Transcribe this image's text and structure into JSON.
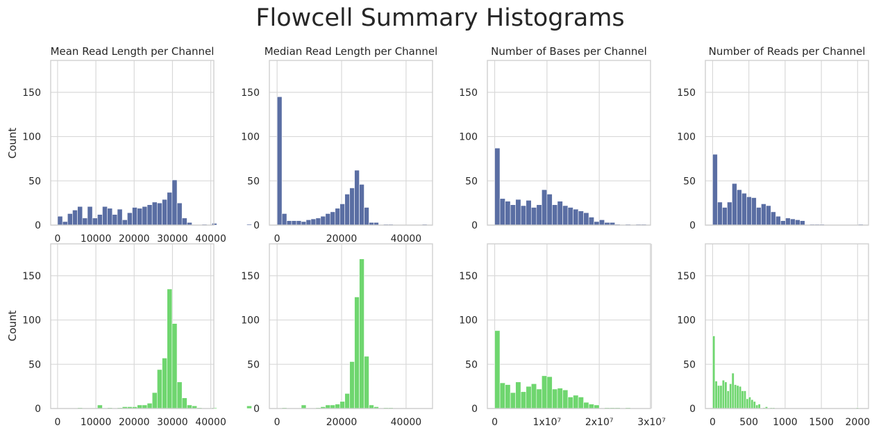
{
  "figure": {
    "title": "Flowcell Summary Histograms",
    "row_ylabels": [
      "Count",
      "Count"
    ],
    "row_colors": [
      "#5a6ea3",
      "#6fd66f"
    ]
  },
  "chart_data": [
    {
      "type": "bar",
      "row": 0,
      "col": 0,
      "title": "Mean Read Length per Channel",
      "xlabel": "",
      "ylabel": "Count",
      "xlim": [
        -1800,
        40800
      ],
      "ylim": [
        0,
        186
      ],
      "grid": true,
      "bin_start": 0,
      "bin_width": 1300,
      "values": [
        10,
        4,
        13,
        17,
        21,
        8,
        21,
        8,
        12,
        21,
        19,
        12,
        18,
        6,
        14,
        20,
        19,
        21,
        23,
        26,
        25,
        29,
        37,
        51,
        25,
        8,
        3,
        0,
        0,
        1,
        0,
        2,
        0,
        0,
        0,
        0,
        0,
        0,
        1,
        0
      ],
      "xticks": [
        0,
        10000,
        20000,
        30000,
        40000
      ],
      "xtick_labels": [
        "0",
        "10000",
        "20000",
        "30000",
        "40000"
      ],
      "yticks": [
        0,
        50,
        100,
        150
      ],
      "ytick_labels": [
        "0",
        "50",
        "100",
        "150"
      ]
    },
    {
      "type": "bar",
      "row": 0,
      "col": 1,
      "title": "Median Read Length per Channel",
      "xlabel": "",
      "ylabel": "",
      "xlim": [
        -2400,
        48200
      ],
      "ylim": [
        0,
        186
      ],
      "grid": true,
      "bin_start": 0,
      "bin_width": 1500,
      "values": [
        145,
        13,
        5,
        5,
        5,
        4,
        6,
        7,
        8,
        10,
        13,
        15,
        19,
        24,
        35,
        42,
        62,
        46,
        20,
        3,
        3,
        0,
        1,
        1,
        0,
        0,
        0,
        0,
        0,
        0,
        1,
        0
      ],
      "xticks": [
        0,
        20000,
        40000
      ],
      "xtick_labels": [
        "0",
        "20000",
        "40000"
      ],
      "yticks": [
        0,
        50,
        100,
        150
      ],
      "ytick_labels": [
        "0",
        "50",
        "100",
        "150"
      ]
    },
    {
      "type": "bar",
      "row": 0,
      "col": 2,
      "title": "Number of Bases per Channel",
      "xlabel": "",
      "ylabel": "",
      "xlim": [
        -1400000,
        29800000
      ],
      "ylim": [
        0,
        186
      ],
      "grid": true,
      "bin_start": 0,
      "bin_width": 1000000,
      "values": [
        87,
        30,
        27,
        23,
        29,
        22,
        28,
        20,
        23,
        40,
        35,
        23,
        27,
        22,
        20,
        18,
        16,
        14,
        9,
        4,
        6,
        3,
        3,
        1,
        0,
        1,
        0,
        1,
        1,
        0
      ],
      "xticks": [
        0,
        10000000,
        20000000
      ],
      "xtick_labels": [
        "",
        "",
        ""
      ],
      "yticks": [
        0,
        50,
        100,
        150
      ],
      "ytick_labels": [
        "0",
        "50",
        "100",
        "150"
      ]
    },
    {
      "type": "bar",
      "row": 0,
      "col": 3,
      "title": "Number of Reads per Channel",
      "xlabel": "",
      "ylabel": "",
      "xlim": [
        -100,
        2150
      ],
      "ylim": [
        0,
        186
      ],
      "grid": true,
      "bin_start": 0,
      "bin_width": 67,
      "values": [
        80,
        26,
        20,
        26,
        47,
        40,
        36,
        32,
        31,
        20,
        24,
        22,
        15,
        10,
        5,
        8,
        7,
        6,
        5,
        0,
        1,
        1,
        1,
        0,
        0,
        0,
        0,
        0,
        0,
        0,
        1
      ],
      "xticks": [
        0,
        500,
        1000,
        1500,
        2000
      ],
      "xtick_labels": [
        "",
        "",
        "",
        "",
        ""
      ],
      "yticks": [
        0,
        50,
        100,
        150
      ],
      "ytick_labels": [
        "0",
        "50",
        "100",
        "150"
      ]
    },
    {
      "type": "bar",
      "row": 1,
      "col": 0,
      "title": "",
      "xlabel": "",
      "ylabel": "Count",
      "xlim": [
        -1800,
        40800
      ],
      "ylim": [
        0,
        186
      ],
      "grid": true,
      "bin_start": 0,
      "bin_width": 1300,
      "values": [
        0,
        0,
        0,
        0,
        1,
        0,
        0,
        0,
        4,
        0,
        1,
        0,
        1,
        2,
        2,
        2,
        4,
        4,
        6,
        18,
        44,
        57,
        135,
        96,
        30,
        12,
        4,
        3,
        1,
        0,
        0,
        1,
        0,
        0,
        0,
        0,
        0,
        0,
        3,
        0
      ],
      "xticks": [
        0,
        10000,
        20000,
        30000,
        40000
      ],
      "xtick_labels": [
        "0",
        "10000",
        "20000",
        "30000",
        "40000"
      ],
      "yticks": [
        0,
        50,
        100,
        150
      ],
      "ytick_labels": [
        "0",
        "50",
        "100",
        "150"
      ]
    },
    {
      "type": "bar",
      "row": 1,
      "col": 1,
      "title": "",
      "xlabel": "",
      "ylabel": "",
      "xlim": [
        -2400,
        48200
      ],
      "ylim": [
        0,
        186
      ],
      "grid": true,
      "bin_start": 0,
      "bin_width": 1500,
      "values": [
        0,
        1,
        0,
        0,
        0,
        4,
        0,
        0,
        1,
        2,
        4,
        4,
        5,
        8,
        17,
        53,
        126,
        169,
        59,
        4,
        2,
        0,
        1,
        1,
        0,
        0,
        0,
        0,
        0,
        0,
        0,
        0
      ],
      "xticks": [
        0,
        20000,
        40000
      ],
      "xtick_labels": [
        "0",
        "20000",
        "40000"
      ],
      "yticks": [
        0,
        50,
        100,
        150
      ],
      "ytick_labels": [
        "0",
        "50",
        "100",
        "150"
      ]
    },
    {
      "type": "bar",
      "row": 1,
      "col": 2,
      "title": "",
      "xlabel": "",
      "ylabel": "",
      "xlim": [
        -1400000,
        29800000
      ],
      "ylim": [
        0,
        186
      ],
      "grid": true,
      "bin_start": 0,
      "bin_width": 1000000,
      "values": [
        88,
        29,
        27,
        18,
        30,
        19,
        25,
        28,
        22,
        37,
        36,
        22,
        23,
        21,
        13,
        15,
        13,
        7,
        5,
        4,
        0,
        1,
        1,
        1,
        0,
        1,
        0,
        0,
        0,
        0
      ],
      "xticks": [
        0,
        10000000,
        20000000,
        30000000
      ],
      "xtick_labels": [
        "0",
        "1x10⁷",
        "2x10⁷",
        "3x10⁷"
      ],
      "yticks": [
        0,
        50,
        100,
        150
      ],
      "ytick_labels": [
        "0",
        "50",
        "100",
        "150"
      ]
    },
    {
      "type": "bar",
      "row": 1,
      "col": 3,
      "title": "",
      "xlabel": "",
      "ylabel": "",
      "xlim": [
        -100,
        2150
      ],
      "ylim": [
        0,
        186
      ],
      "grid": true,
      "bin_start": 0,
      "bin_width": 33,
      "values": [
        82,
        31,
        26,
        26,
        32,
        30,
        20,
        28,
        40,
        27,
        26,
        25,
        20,
        20,
        11,
        13,
        10,
        8,
        4,
        5,
        0,
        1,
        2,
        0,
        1,
        1,
        0,
        0,
        0,
        0,
        0,
        0,
        0,
        0,
        0,
        0,
        0,
        0,
        0,
        0,
        0,
        0,
        0,
        0,
        0,
        0,
        0,
        0,
        0,
        0,
        0,
        0,
        0,
        0,
        0,
        0,
        0,
        0,
        0,
        0,
        1
      ],
      "xticks": [
        0,
        500,
        1000,
        1500,
        2000
      ],
      "xtick_labels": [
        "0",
        "500",
        "1000",
        "1500",
        "2000"
      ],
      "yticks": [
        0,
        50,
        100,
        150
      ],
      "ytick_labels": [
        "0",
        "50",
        "100",
        "150"
      ]
    }
  ]
}
